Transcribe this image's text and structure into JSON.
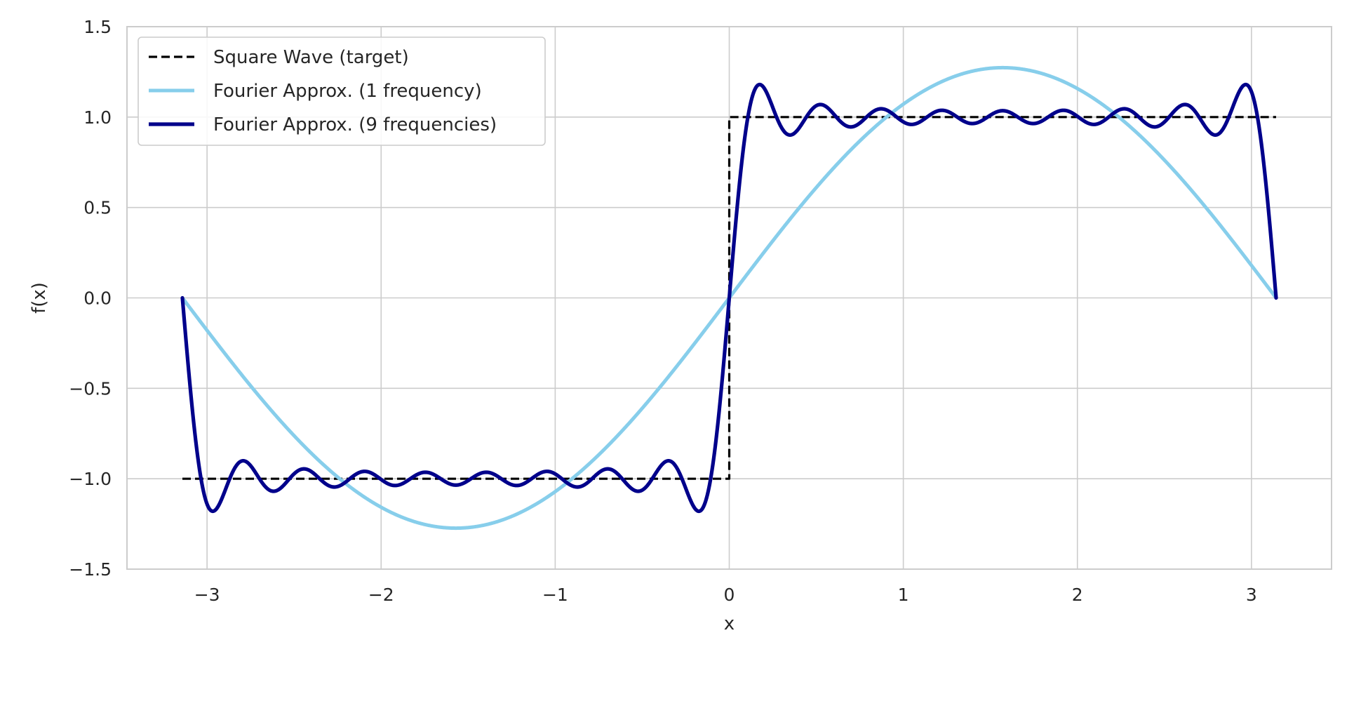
{
  "chart_data": {
    "type": "line",
    "title": "",
    "xlabel": "x",
    "ylabel": "f(x)",
    "xlim": [
      -3.46,
      3.46
    ],
    "ylim": [
      -1.5,
      1.5
    ],
    "xticks": [
      -3,
      -2,
      -1,
      0,
      1,
      2,
      3
    ],
    "xtick_labels": [
      "−3",
      "−2",
      "−1",
      "0",
      "1",
      "2",
      "3"
    ],
    "yticks": [
      -1.5,
      -1.0,
      -0.5,
      0.0,
      0.5,
      1.0,
      1.5
    ],
    "ytick_labels": [
      "−1.5",
      "−1.0",
      "−0.5",
      "0.0",
      "0.5",
      "1.0",
      "1.5"
    ],
    "grid": true,
    "legend_position": "top-left",
    "x_range": [
      -3.14159,
      3.14159
    ],
    "series": [
      {
        "name": "Square Wave (target)",
        "color": "#000000",
        "style": "dashed",
        "x": [
          -3.14159,
          -0.001,
          0.0,
          0.0,
          0.001,
          3.14159
        ],
        "y": [
          -1.0,
          -1.0,
          -1.0,
          1.0,
          1.0,
          1.0
        ]
      },
      {
        "name": "Fourier Approx. (1 frequency)",
        "color": "#87ceeb",
        "style": "solid",
        "formula": "(4/pi) * sin(x)",
        "x": [
          -3.1416,
          -2.618,
          -2.0944,
          -1.5708,
          -1.0472,
          -0.5236,
          0.0,
          0.5236,
          1.0472,
          1.5708,
          2.0944,
          2.618,
          3.1416
        ],
        "y": [
          0.0,
          -0.637,
          -1.103,
          -1.273,
          -1.103,
          -0.637,
          0.0,
          0.637,
          1.103,
          1.273,
          1.103,
          0.637,
          0.0
        ]
      },
      {
        "name": "Fourier Approx. (9 frequencies)",
        "color": "#00008b",
        "style": "solid",
        "formula": "(4/pi) * sum over k=1..9 of sin((2k-1)x)/(2k-1)",
        "x": [
          -3.1416,
          -2.97,
          -2.79,
          -2.45,
          -1.57,
          -0.7,
          -0.35,
          -0.17,
          0.0,
          0.17,
          0.35,
          0.7,
          1.57,
          2.45,
          2.79,
          2.97,
          3.1416
        ],
        "y": [
          0.0,
          -1.18,
          -0.9,
          -0.95,
          -1.02,
          -1.06,
          -0.9,
          -1.18,
          0.0,
          1.18,
          0.9,
          1.06,
          1.02,
          0.95,
          0.9,
          1.18,
          0.0
        ]
      }
    ]
  }
}
